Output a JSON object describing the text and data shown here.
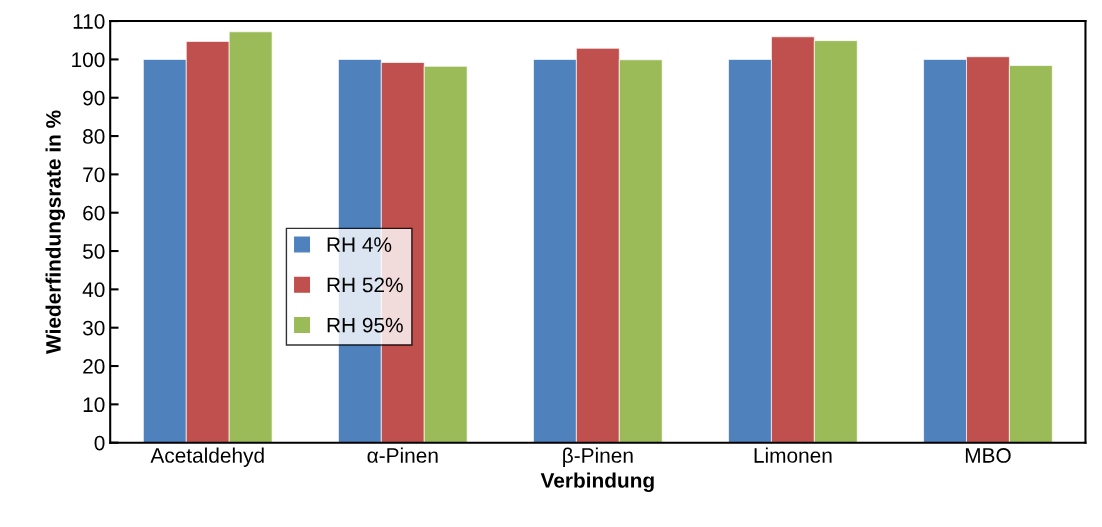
{
  "chart_data": {
    "type": "bar",
    "xlabel": "Verbindung",
    "ylabel": "Wiederfindungsrate in %",
    "categories": [
      "Acetaldehyd",
      "α-Pinen",
      "β-Pinen",
      "Limonen",
      "MBO"
    ],
    "series": [
      {
        "name": "RH 4%",
        "color": "#4f81bd",
        "values": [
          100,
          100,
          100,
          100,
          100
        ]
      },
      {
        "name": "RH 52%",
        "color": "#c0504d",
        "values": [
          104.7,
          99.2,
          102.9,
          105.9,
          100.7
        ]
      },
      {
        "name": "RH 95%",
        "color": "#9bbb59",
        "values": [
          107.2,
          98.2,
          99.9,
          104.9,
          98.4
        ]
      }
    ],
    "ylim": [
      0,
      110
    ],
    "yticks": [
      0,
      10,
      20,
      30,
      40,
      50,
      60,
      70,
      80,
      90,
      100,
      110
    ],
    "grid": false,
    "legend": "left"
  }
}
